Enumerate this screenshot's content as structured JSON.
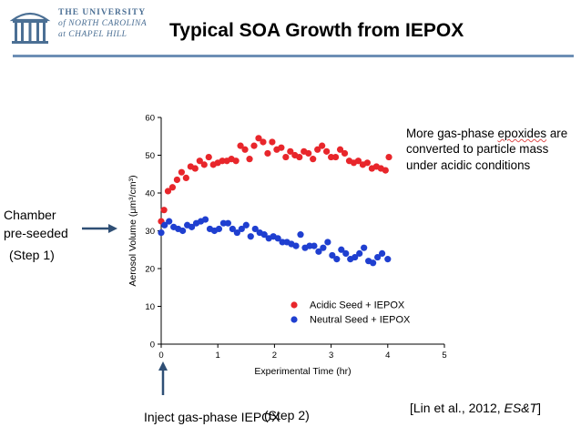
{
  "header": {
    "logo_line1": "THE UNIVERSITY",
    "logo_line2": "of NORTH CAROLINA",
    "logo_line3": "at CHAPEL HILL",
    "title": "Typical SOA Growth from IEPOX"
  },
  "annotations": {
    "note_pre": "More gas-phase ",
    "note_squiggle": "epoxides",
    "note_post": " are converted to particle mass under acidic conditions",
    "chamber_line1": "Chamber",
    "chamber_line2": "pre-seeded",
    "step1": "(Step 1)",
    "inject": "Inject gas-phase IEPOX",
    "step2": "(Step 2)",
    "citation_pre": "[Lin et al., 2012, ",
    "citation_journal": "ES&T",
    "citation_post": "]"
  },
  "colors": {
    "brand_blue": "#4b6f94",
    "rule_blue": "#6d8fb5",
    "acidic": "#e8262b",
    "neutral": "#1f3fd0",
    "arrow": "#2f4f75"
  },
  "chart_data": {
    "type": "scatter",
    "xlabel": "Experimental Time (hr)",
    "ylabel": "Aerosol Volume (μm³/cm³)",
    "xlim": [
      0,
      5
    ],
    "ylim": [
      0,
      60
    ],
    "xticks": [
      "0",
      "1",
      "2",
      "3",
      "4",
      "5"
    ],
    "yticks": [
      "0",
      "10",
      "20",
      "30",
      "40",
      "50",
      "60"
    ],
    "grid": false,
    "legend_position": "bottom-center",
    "series": [
      {
        "name": "Acidic Seed + IEPOX",
        "color": "#e8262b",
        "points": [
          [
            0.0,
            32.5
          ],
          [
            0.05,
            35.5
          ],
          [
            0.12,
            40.5
          ],
          [
            0.2,
            41.5
          ],
          [
            0.28,
            43.5
          ],
          [
            0.36,
            45.5
          ],
          [
            0.44,
            44.0
          ],
          [
            0.52,
            47.0
          ],
          [
            0.6,
            46.5
          ],
          [
            0.68,
            48.5
          ],
          [
            0.76,
            47.5
          ],
          [
            0.84,
            49.5
          ],
          [
            0.92,
            47.5
          ],
          [
            1.0,
            48.0
          ],
          [
            1.08,
            48.5
          ],
          [
            1.16,
            48.5
          ],
          [
            1.24,
            49.0
          ],
          [
            1.32,
            48.5
          ],
          [
            1.4,
            52.5
          ],
          [
            1.48,
            51.5
          ],
          [
            1.56,
            49.0
          ],
          [
            1.64,
            52.5
          ],
          [
            1.72,
            54.5
          ],
          [
            1.8,
            53.5
          ],
          [
            1.88,
            50.5
          ],
          [
            1.96,
            53.5
          ],
          [
            2.04,
            51.5
          ],
          [
            2.12,
            52.0
          ],
          [
            2.2,
            49.5
          ],
          [
            2.28,
            51.0
          ],
          [
            2.36,
            50.0
          ],
          [
            2.44,
            49.5
          ],
          [
            2.52,
            51.0
          ],
          [
            2.6,
            50.5
          ],
          [
            2.68,
            49.0
          ],
          [
            2.76,
            51.5
          ],
          [
            2.84,
            52.5
          ],
          [
            2.92,
            51.0
          ],
          [
            3.0,
            49.5
          ],
          [
            3.08,
            49.5
          ],
          [
            3.16,
            51.5
          ],
          [
            3.24,
            50.5
          ],
          [
            3.32,
            48.5
          ],
          [
            3.4,
            48.0
          ],
          [
            3.48,
            48.5
          ],
          [
            3.56,
            47.5
          ],
          [
            3.64,
            48.0
          ],
          [
            3.72,
            46.5
          ],
          [
            3.8,
            47.0
          ],
          [
            3.88,
            46.5
          ],
          [
            3.96,
            46.0
          ],
          [
            4.02,
            49.5
          ]
        ]
      },
      {
        "name": "Neutral Seed + IEPOX",
        "color": "#1f3fd0",
        "points": [
          [
            0.0,
            29.5
          ],
          [
            0.06,
            31.5
          ],
          [
            0.14,
            32.5
          ],
          [
            0.22,
            31.0
          ],
          [
            0.3,
            30.5
          ],
          [
            0.38,
            30.0
          ],
          [
            0.46,
            31.5
          ],
          [
            0.54,
            31.0
          ],
          [
            0.62,
            32.0
          ],
          [
            0.7,
            32.5
          ],
          [
            0.78,
            33.0
          ],
          [
            0.86,
            30.5
          ],
          [
            0.94,
            30.0
          ],
          [
            1.02,
            30.5
          ],
          [
            1.1,
            32.0
          ],
          [
            1.18,
            32.0
          ],
          [
            1.26,
            30.5
          ],
          [
            1.34,
            29.5
          ],
          [
            1.42,
            30.5
          ],
          [
            1.5,
            31.5
          ],
          [
            1.58,
            28.5
          ],
          [
            1.66,
            30.5
          ],
          [
            1.74,
            29.5
          ],
          [
            1.82,
            29.0
          ],
          [
            1.9,
            28.0
          ],
          [
            1.98,
            28.5
          ],
          [
            2.06,
            28.0
          ],
          [
            2.14,
            27.0
          ],
          [
            2.22,
            27.0
          ],
          [
            2.3,
            26.5
          ],
          [
            2.38,
            26.0
          ],
          [
            2.46,
            29.0
          ],
          [
            2.54,
            25.5
          ],
          [
            2.62,
            26.0
          ],
          [
            2.7,
            26.0
          ],
          [
            2.78,
            24.5
          ],
          [
            2.86,
            25.5
          ],
          [
            2.94,
            27.0
          ],
          [
            3.02,
            23.5
          ],
          [
            3.1,
            22.5
          ],
          [
            3.18,
            25.0
          ],
          [
            3.26,
            24.0
          ],
          [
            3.34,
            22.5
          ],
          [
            3.42,
            23.0
          ],
          [
            3.5,
            24.0
          ],
          [
            3.58,
            25.5
          ],
          [
            3.66,
            22.0
          ],
          [
            3.74,
            21.5
          ],
          [
            3.82,
            23.0
          ],
          [
            3.9,
            24.0
          ],
          [
            4.0,
            22.5
          ]
        ]
      }
    ]
  }
}
